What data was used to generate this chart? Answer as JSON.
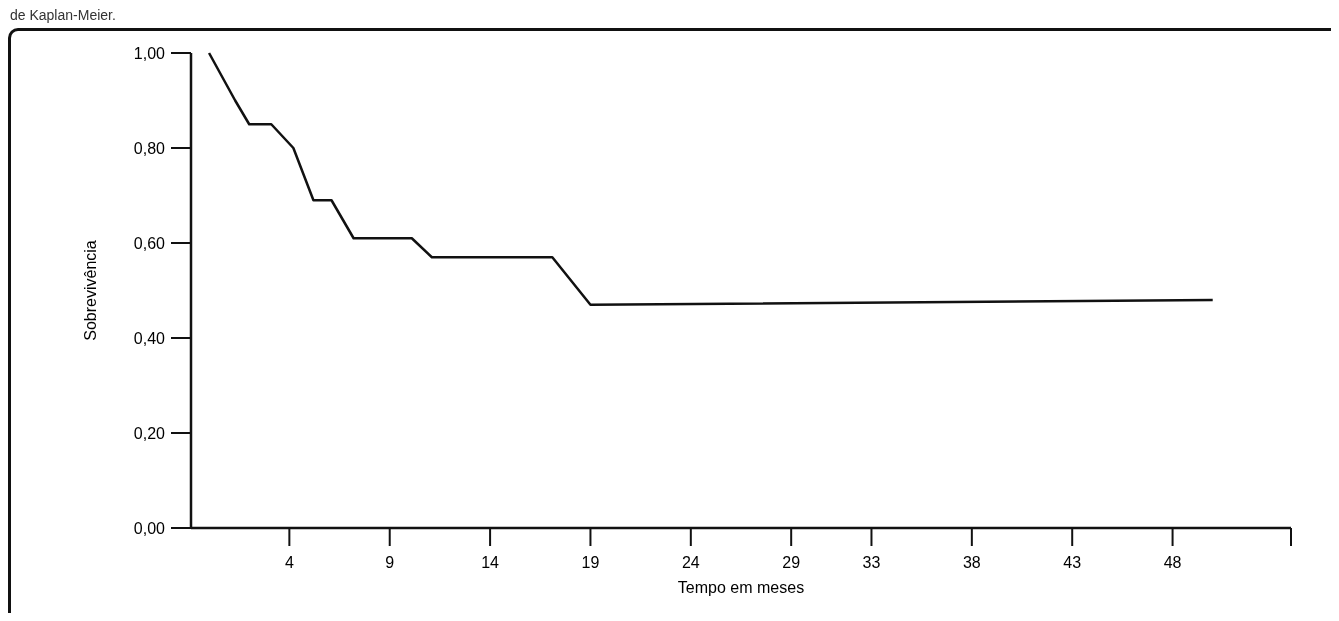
{
  "chart_data": {
    "type": "line",
    "xlabel": "Tempo em meses",
    "ylabel": "Sobrevivência",
    "annotations": [
      "de Kaplan-Meier."
    ],
    "x": [
      0,
      1.3,
      2.0,
      3.1,
      4.2,
      5.2,
      6.1,
      7.2,
      10.1,
      11.1,
      17.1,
      19.0,
      50
    ],
    "series": [
      {
        "color": "#111111",
        "values": [
          1.0,
          0.9,
          0.85,
          0.85,
          0.8,
          0.69,
          0.69,
          0.61,
          0.61,
          0.57,
          0.57,
          0.47,
          0.48
        ]
      }
    ],
    "xlim": [
      -0.9,
      53.9
    ],
    "ylim": [
      0,
      1
    ],
    "xticks": [
      4,
      9,
      14,
      19,
      24,
      29,
      33,
      38,
      43,
      48
    ],
    "yticks": [
      {
        "value": 0,
        "label": "0,00"
      },
      {
        "value": 0.2,
        "label": "0,20"
      },
      {
        "value": 0.4,
        "label": "0,40"
      },
      {
        "value": 0.6,
        "label": "0,60"
      },
      {
        "value": 0.8,
        "label": "0,80"
      },
      {
        "value": 1,
        "label": "1,00"
      }
    ],
    "grid": false,
    "marker": "none",
    "line_style": "solid"
  }
}
